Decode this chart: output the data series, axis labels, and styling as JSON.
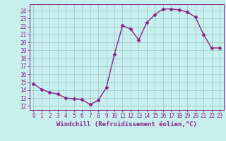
{
  "x": [
    0,
    1,
    2,
    3,
    4,
    5,
    6,
    7,
    8,
    9,
    10,
    11,
    12,
    13,
    14,
    15,
    16,
    17,
    18,
    19,
    20,
    21,
    22,
    23
  ],
  "y": [
    14.8,
    14.1,
    13.7,
    13.5,
    13.0,
    12.9,
    12.8,
    12.2,
    12.7,
    14.3,
    18.5,
    22.1,
    21.7,
    20.3,
    22.5,
    23.5,
    24.2,
    24.2,
    24.1,
    23.8,
    23.2,
    21.0,
    19.3,
    19.3
  ],
  "line_color": "#882288",
  "marker_color": "#882288",
  "bg_color": "#c8eeee",
  "grid_color": "#a0cccc",
  "xlabel": "Windchill (Refroidissement éolien,°C)",
  "xlim": [
    -0.5,
    23.5
  ],
  "ylim": [
    11.5,
    24.8
  ],
  "yticks": [
    12,
    13,
    14,
    15,
    16,
    17,
    18,
    19,
    20,
    21,
    22,
    23,
    24
  ],
  "xticks": [
    0,
    1,
    2,
    3,
    4,
    5,
    6,
    7,
    8,
    9,
    10,
    11,
    12,
    13,
    14,
    15,
    16,
    17,
    18,
    19,
    20,
    21,
    22,
    23
  ],
  "tick_fontsize": 5.5,
  "xlabel_fontsize": 6.5,
  "marker_size": 2.5,
  "line_width": 1.0
}
